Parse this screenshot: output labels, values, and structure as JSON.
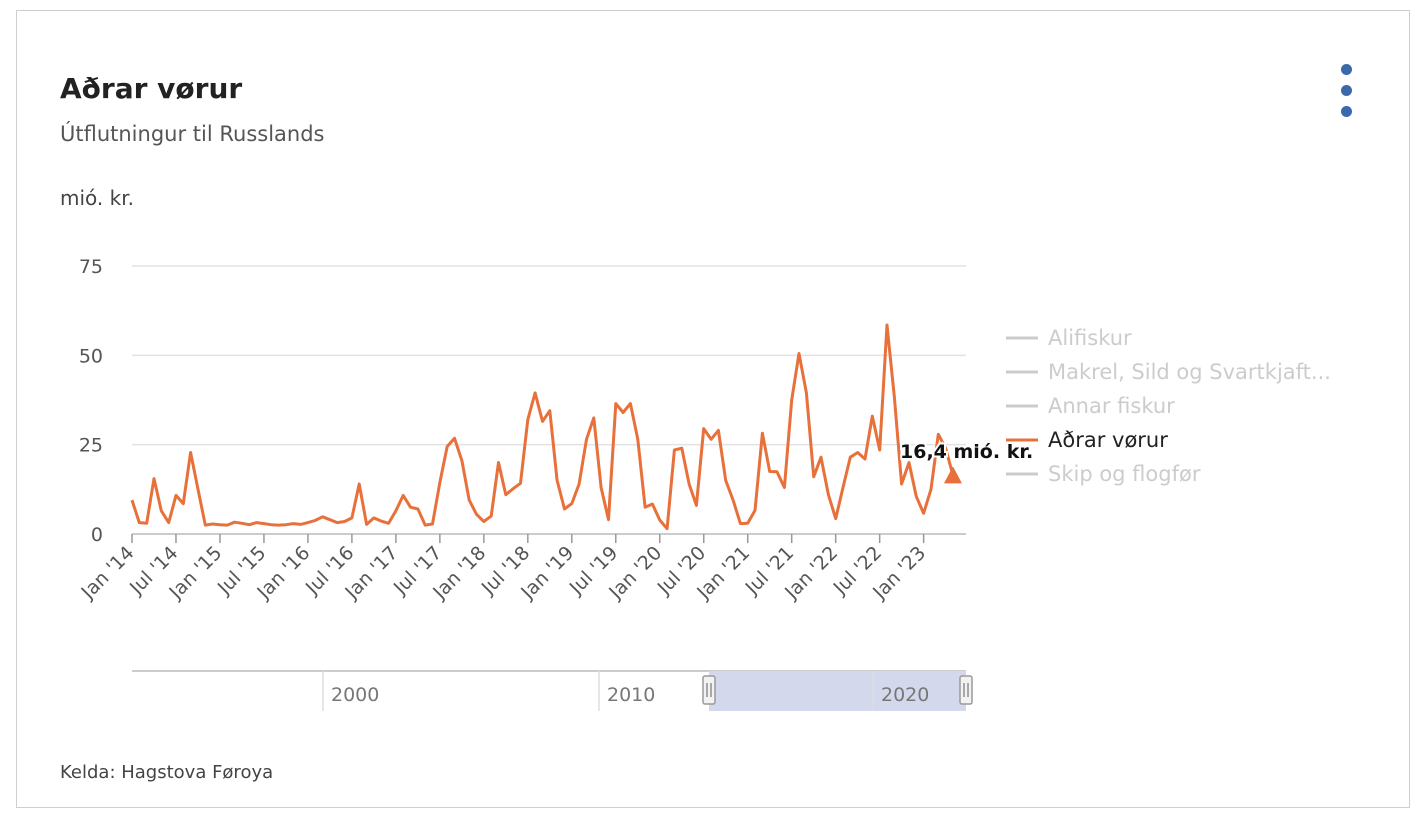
{
  "header": {
    "title": "Aðrar vørur",
    "subtitle": "Útflutningur til Russlands",
    "unit_label": "mió. kr.",
    "menu_icon": "vertical-ellipsis-icon"
  },
  "footer": {
    "credit": "Kelda: Hagstova Føroya"
  },
  "tooltip": {
    "text": "16,4 mió. kr."
  },
  "colors": {
    "series": "#e8703a",
    "legend_inactive": "#cccccc",
    "grid": "#e2e2e2",
    "navigator_fill": "#d3d8ec",
    "menu": "#3b69ab"
  },
  "legend": [
    {
      "label": "Alifiskur",
      "active": false
    },
    {
      "label": "Makrel, Sild og Svartkjaft...",
      "active": false
    },
    {
      "label": "Annar fiskur",
      "active": false
    },
    {
      "label": "Aðrar vørur",
      "active": true
    },
    {
      "label": "Skip og flogfør",
      "active": false
    }
  ],
  "navigator": {
    "labels": [
      "2000",
      "2010",
      "2020"
    ],
    "selected_range": [
      "2014-01",
      "2023-06"
    ]
  },
  "chart_data": {
    "type": "line",
    "title": "Aðrar vørur",
    "subtitle": "Útflutningur til Russlands",
    "ylabel": "mió. kr.",
    "ylim": [
      0,
      75
    ],
    "yticks": [
      0,
      25,
      50,
      75
    ],
    "xticks": [
      "Jan '14",
      "Jul '14",
      "Jan '15",
      "Jul '15",
      "Jan '16",
      "Jul '16",
      "Jan '17",
      "Jul '17",
      "Jan '18",
      "Jul '18",
      "Jan '19",
      "Jul '19",
      "Jan '20",
      "Jul '20",
      "Jan '21",
      "Jul '21",
      "Jan '22",
      "Jul '22",
      "Jan '23"
    ],
    "x_start": "2014-01",
    "x_end": "2023-06",
    "grid": true,
    "legend_position": "right",
    "series": [
      {
        "name": "Aðrar vørur",
        "highlight_last": "16,4 mió. kr.",
        "values": [
          9.5,
          3.2,
          3,
          15.5,
          6.5,
          3.2,
          10.8,
          8.5,
          22.8,
          12.5,
          2.5,
          2.8,
          2.6,
          2.5,
          3.3,
          3,
          2.6,
          3.2,
          2.9,
          2.6,
          2.5,
          2.6,
          2.9,
          2.7,
          3.2,
          3.8,
          4.8,
          4,
          3.2,
          3.5,
          4.5,
          14,
          2.7,
          4.5,
          3.6,
          3,
          6.5,
          10.8,
          7.5,
          7,
          2.5,
          2.8,
          14.5,
          24.5,
          26.8,
          20.5,
          9.5,
          5.5,
          3.5,
          5,
          20,
          11,
          12.7,
          14.2,
          32,
          39.5,
          31.5,
          34.5,
          15,
          7,
          8.5,
          14,
          26.5,
          32.5,
          13,
          4,
          36.5,
          34,
          36.5,
          26.5,
          7.5,
          8.4,
          3.9,
          1.5,
          23.5,
          24,
          14,
          8,
          29.5,
          26.5,
          29,
          15,
          9.5,
          2.9,
          3,
          6.6,
          28.2,
          17.5,
          17.4,
          13,
          37.5,
          50.5,
          39.5,
          16,
          21.5,
          11,
          4.3,
          13,
          21.5,
          22.8,
          21,
          33,
          23.5,
          58.5,
          38.5,
          14,
          20,
          10.5,
          5.8,
          12.5,
          27.9,
          24,
          16.4
        ]
      }
    ]
  }
}
